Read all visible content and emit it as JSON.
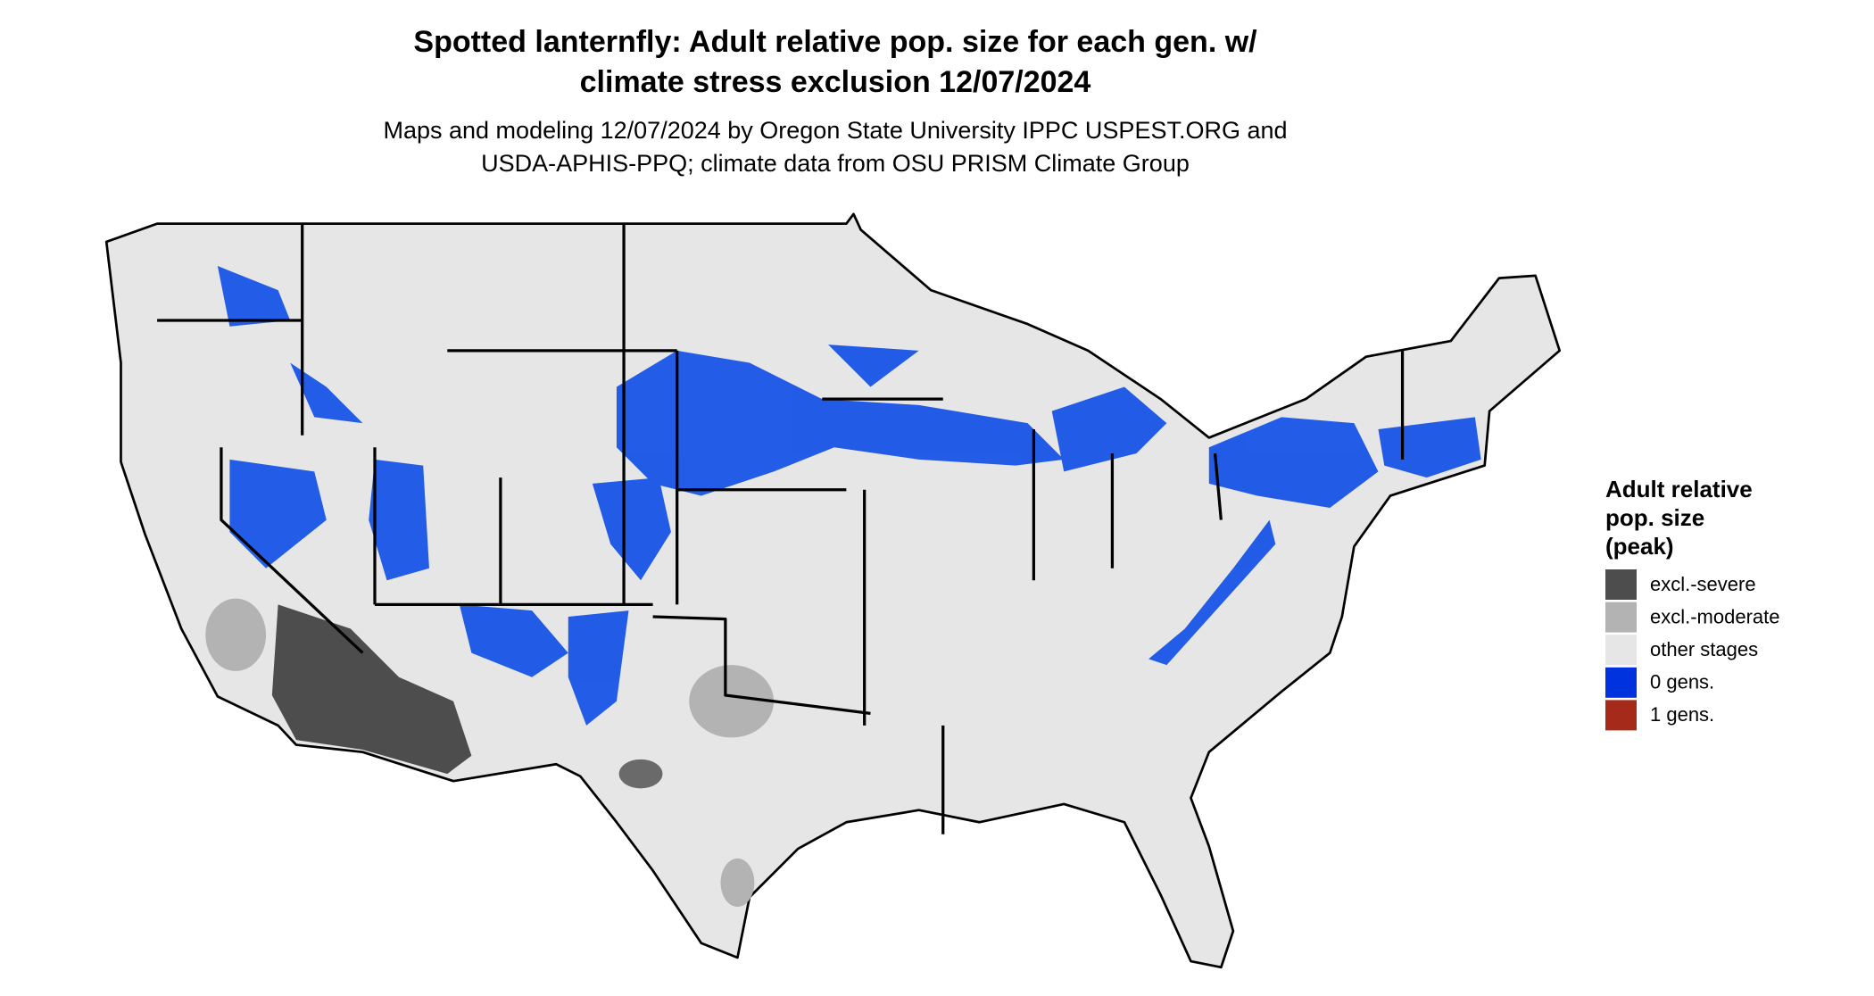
{
  "header": {
    "title": [
      "Spotted lanternfly: Adult relative pop. size for each gen. w/",
      "climate stress exclusion 12/07/2024"
    ],
    "subtitle": [
      "Maps and modeling 12/07/2024 by Oregon State University IPPC USPEST.ORG and",
      "USDA-APHIS-PPQ; climate data from OSU PRISM Climate Group"
    ]
  },
  "legend": {
    "title": [
      "Adult relative",
      "pop. size",
      "(peak)"
    ],
    "items": [
      {
        "label": "excl.-severe",
        "color": "#4d4d4d"
      },
      {
        "label": "excl.-moderate",
        "color": "#b3b3b3"
      },
      {
        "label": "other stages",
        "color": "#e6e6e6"
      },
      {
        "label": "0 gens.",
        "color": "#0033dd"
      },
      {
        "label": "1 gens.",
        "color": "#a52a1a"
      }
    ]
  }
}
